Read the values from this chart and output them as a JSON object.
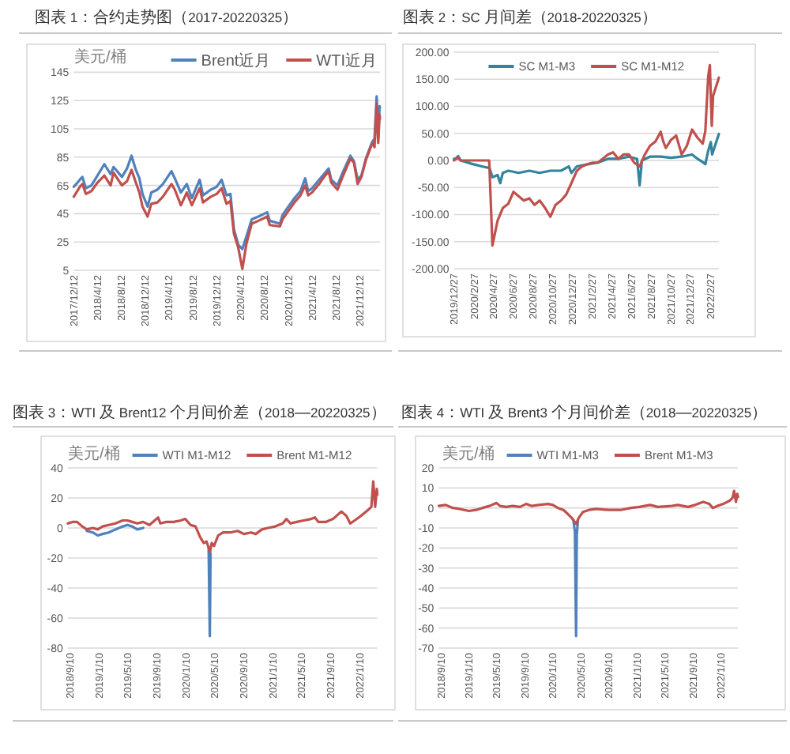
{
  "chart_data": [
    {
      "type": "line",
      "title": "图表 1：合约走势图（2017-20220325）",
      "ylabel": "美元/桶",
      "x": [
        "2017-12-12",
        "2018-01-12",
        "2018-01-25",
        "2018-02-12",
        "2018-03-12",
        "2018-04-12",
        "2018-05-17",
        "2018-06-18",
        "2018-07-03",
        "2018-08-15",
        "2018-09-10",
        "2018-10-03",
        "2018-10-25",
        "2018-11-12",
        "2018-11-28",
        "2018-12-24",
        "2019-01-12",
        "2019-02-12",
        "2019-03-12",
        "2019-04-25",
        "2019-05-12",
        "2019-06-12",
        "2019-07-12",
        "2019-08-07",
        "2019-09-16",
        "2019-10-03",
        "2019-11-12",
        "2019-12-12",
        "2020-01-06",
        "2020-01-31",
        "2020-02-20",
        "2020-03-09",
        "2020-03-31",
        "2020-04-21",
        "2020-05-12",
        "2020-06-08",
        "2020-07-12",
        "2020-08-26",
        "2020-09-08",
        "2020-10-30",
        "2020-11-12",
        "2020-12-12",
        "2021-01-12",
        "2021-02-12",
        "2021-03-08",
        "2021-03-23",
        "2021-04-12",
        "2021-05-18",
        "2021-06-12",
        "2021-07-06",
        "2021-07-19",
        "2021-08-20",
        "2021-09-12",
        "2021-10-25",
        "2021-11-12",
        "2021-12-01",
        "2021-12-20",
        "2022-01-12",
        "2022-02-14",
        "2022-02-25",
        "2022-03-08",
        "2022-03-16",
        "2022-03-23",
        "2022-03-25"
      ],
      "series": [
        {
          "name": "Brent近月",
          "color": "#4f81bd",
          "values": [
            64,
            69,
            71,
            63,
            65,
            72,
            80,
            73,
            78,
            71,
            77,
            86,
            76,
            70,
            59,
            50,
            60,
            62,
            66,
            75,
            70,
            60,
            66,
            56,
            69,
            58,
            62,
            64,
            69,
            58,
            59,
            34,
            23,
            20,
            29,
            41,
            43,
            46,
            40,
            38,
            44,
            50,
            56,
            61,
            70,
            61,
            63,
            69,
            73,
            77,
            69,
            65,
            73,
            86,
            82,
            69,
            72,
            84,
            96,
            98,
            128,
            98,
            121,
            120
          ]
        },
        {
          "name": "WTI近月",
          "color": "#c0504d",
          "values": [
            57,
            64,
            66,
            59,
            61,
            67,
            72,
            65,
            74,
            65,
            68,
            76,
            67,
            60,
            50,
            43,
            52,
            53,
            57,
            66,
            62,
            51,
            60,
            51,
            63,
            53,
            57,
            59,
            63,
            52,
            54,
            31,
            21,
            6,
            24,
            38,
            40,
            43,
            37,
            36,
            41,
            47,
            53,
            58,
            65,
            58,
            60,
            66,
            71,
            75,
            67,
            62,
            70,
            84,
            81,
            66,
            71,
            83,
            95,
            92,
            123,
            95,
            115,
            112
          ]
        }
      ],
      "xlim": [
        "2017-12-12",
        "2022-03-25"
      ],
      "xticks": [
        {
          "value": "2017-12-12",
          "label": "2017/12/12"
        },
        {
          "value": "2018-04-12",
          "label": "2018/4/12"
        },
        {
          "value": "2018-08-12",
          "label": "2018/8/12"
        },
        {
          "value": "2018-12-12",
          "label": "2018/12/12"
        },
        {
          "value": "2019-04-12",
          "label": "2019/4/12"
        },
        {
          "value": "2019-08-12",
          "label": "2019/8/12"
        },
        {
          "value": "2019-12-12",
          "label": "2019/12/12"
        },
        {
          "value": "2020-04-12",
          "label": "2020/4/12"
        },
        {
          "value": "2020-08-12",
          "label": "2020/8/12"
        },
        {
          "value": "2020-12-12",
          "label": "2020/12/12"
        },
        {
          "value": "2021-04-12",
          "label": "2021/4/12"
        },
        {
          "value": "2021-08-12",
          "label": "2021/8/12"
        },
        {
          "value": "2021-12-12",
          "label": "2021/12/12"
        }
      ],
      "ylim": [
        5,
        145
      ],
      "yticks": [
        5,
        25,
        45,
        65,
        85,
        105,
        125,
        145
      ],
      "grid": "y",
      "legend": "top right"
    },
    {
      "type": "line",
      "title": "图表 2：SC 月间差（2018-20220325）",
      "series": [
        {
          "name": "SC M1-M3",
          "color": "#31849b",
          "x": [
            "2019-12-27",
            "2020-01-01",
            "2020-01-09",
            "2020-01-17",
            "2020-02-19",
            "2020-03-22",
            "2020-04-15",
            "2020-04-24",
            "2020-05-10",
            "2020-05-18",
            "2020-05-26",
            "2020-06-12",
            "2020-07-14",
            "2020-08-16",
            "2020-09-17",
            "2020-10-20",
            "2020-11-22",
            "2020-12-16",
            "2020-12-24",
            "2021-01-10",
            "2021-02-12",
            "2021-03-16",
            "2021-04-16",
            "2021-05-18",
            "2021-06-20",
            "2021-07-15",
            "2021-07-23",
            "2021-07-30",
            "2021-08-24",
            "2021-09-26",
            "2021-10-28",
            "2021-11-30",
            "2022-01-01",
            "2022-01-18",
            "2022-02-03",
            "2022-02-11",
            "2022-02-20",
            "2022-02-28",
            "2022-03-04",
            "2022-03-25"
          ],
          "values": [
            3,
            3,
            8,
            0,
            -6,
            -11,
            -14,
            -31,
            -27,
            -42,
            -23,
            -19,
            -23,
            -19,
            -23,
            -19,
            -19,
            -11,
            -23,
            -11,
            -7,
            -4,
            3,
            3,
            7,
            3,
            -46,
            0,
            7,
            7,
            5,
            7,
            11,
            3,
            -3,
            -7,
            18,
            34,
            11,
            49
          ]
        },
        {
          "name": "SC M1-M12",
          "color": "#c0504d",
          "x": [
            "2019-12-27",
            "2020-01-08",
            "2020-01-17",
            "2020-04-14",
            "2020-04-24",
            "2020-05-10",
            "2020-05-26",
            "2020-06-12",
            "2020-06-28",
            "2020-07-14",
            "2020-07-30",
            "2020-08-16",
            "2020-09-01",
            "2020-09-17",
            "2020-10-04",
            "2020-10-20",
            "2020-11-05",
            "2020-11-22",
            "2020-12-08",
            "2020-12-24",
            "2021-01-10",
            "2021-01-26",
            "2021-02-12",
            "2021-02-28",
            "2021-03-16",
            "2021-04-16",
            "2021-05-02",
            "2021-05-18",
            "2021-06-03",
            "2021-06-20",
            "2021-07-06",
            "2021-07-23",
            "2021-08-08",
            "2021-08-24",
            "2021-09-10",
            "2021-09-26",
            "2021-10-04",
            "2021-10-12",
            "2021-10-28",
            "2021-11-13",
            "2021-11-30",
            "2021-12-16",
            "2022-01-01",
            "2022-01-18",
            "2022-02-03",
            "2022-02-11",
            "2022-02-20",
            "2022-02-25",
            "2022-03-03",
            "2022-03-07",
            "2022-03-25"
          ],
          "values": [
            0,
            5,
            0,
            0,
            -157,
            -111,
            -88,
            -80,
            -58,
            -66,
            -74,
            -70,
            -82,
            -74,
            -88,
            -104,
            -82,
            -74,
            -63,
            -42,
            -19,
            -11,
            -7,
            -4,
            -4,
            11,
            15,
            3,
            11,
            11,
            -4,
            -11,
            11,
            27,
            35,
            53,
            35,
            23,
            38,
            46,
            11,
            27,
            57,
            42,
            31,
            54,
            156,
            176,
            64,
            119,
            153
          ]
        }
      ],
      "xlim": [
        "2019-12-27",
        "2022-03-25"
      ],
      "xticks": [
        {
          "value": "2019-12-27",
          "label": "2019/12/27"
        },
        {
          "value": "2020-02-27",
          "label": "2020/2/27"
        },
        {
          "value": "2020-04-27",
          "label": "2020/4/27"
        },
        {
          "value": "2020-06-27",
          "label": "2020/6/27"
        },
        {
          "value": "2020-08-27",
          "label": "2020/8/27"
        },
        {
          "value": "2020-10-27",
          "label": "2020/10/27"
        },
        {
          "value": "2020-12-27",
          "label": "2020/12/27"
        },
        {
          "value": "2021-02-27",
          "label": "2021/2/27"
        },
        {
          "value": "2021-04-27",
          "label": "2021/4/27"
        },
        {
          "value": "2021-06-27",
          "label": "2021/6/27"
        },
        {
          "value": "2021-08-27",
          "label": "2021/8/27"
        },
        {
          "value": "2021-10-27",
          "label": "2021/10/27"
        },
        {
          "value": "2021-12-27",
          "label": "2021/12/27"
        },
        {
          "value": "2022-02-27",
          "label": "2022/2/27"
        }
      ],
      "ylim": [
        -200,
        200
      ],
      "yticks": [
        {
          "value": -200,
          "label": "-200.00"
        },
        {
          "value": -150,
          "label": "-150.00"
        },
        {
          "value": -100,
          "label": "-100.00"
        },
        {
          "value": -50,
          "label": "-50.00"
        },
        {
          "value": 0,
          "label": "0.00"
        },
        {
          "value": 50,
          "label": "50.00"
        },
        {
          "value": 100,
          "label": "100.00"
        },
        {
          "value": 150,
          "label": "150.00"
        },
        {
          "value": 200,
          "label": "200.00"
        }
      ],
      "grid": "y",
      "legend": "top"
    },
    {
      "type": "line",
      "title": "图表 3：WTI 及 Brent12 个月间价差（2018—20220325）",
      "ylabel": "美元/桶",
      "series": [
        {
          "name": "WTI M1-M12",
          "color": "#4f81bd",
          "x": [
            "2018-11-20",
            "2018-12-15",
            "2019-01-05",
            "2019-01-25",
            "2019-02-20",
            "2019-03-20",
            "2019-04-20",
            "2019-05-10",
            "2019-05-30",
            "2019-06-20",
            "2019-07-15"
          ],
          "values": [
            -2,
            -3,
            -5,
            -4,
            -3,
            -1,
            1,
            2,
            1,
            -1,
            0
          ]
        },
        {
          "color": "#4f81bd",
          "x": [
            "2020-04-15",
            "2020-04-20",
            "2020-04-23"
          ],
          "values": [
            -13,
            -72,
            -17
          ]
        },
        {
          "name": "Brent M1-M12",
          "color": "#c0504d",
          "x": [
            "2018-09-01",
            "2018-09-20",
            "2018-10-10",
            "2018-11-01",
            "2018-11-20",
            "2018-12-15",
            "2019-01-05",
            "2019-01-25",
            "2019-02-20",
            "2019-03-20",
            "2019-04-20",
            "2019-05-10",
            "2019-05-30",
            "2019-06-20",
            "2019-07-15",
            "2019-08-10",
            "2019-09-16",
            "2019-09-25",
            "2019-10-20",
            "2019-11-20",
            "2019-12-20",
            "2020-01-08",
            "2020-01-30",
            "2020-02-20",
            "2020-03-10",
            "2020-03-25",
            "2020-04-06",
            "2020-04-15",
            "2020-04-21",
            "2020-04-28",
            "2020-05-08",
            "2020-05-25",
            "2020-06-15",
            "2020-07-15",
            "2020-08-15",
            "2020-09-10",
            "2020-10-10",
            "2020-10-30",
            "2020-11-25",
            "2020-12-20",
            "2021-01-20",
            "2021-02-20",
            "2021-03-08",
            "2021-03-25",
            "2021-04-20",
            "2021-05-20",
            "2021-06-20",
            "2021-07-06",
            "2021-07-20",
            "2021-08-20",
            "2021-09-20",
            "2021-10-25",
            "2021-11-15",
            "2021-12-01",
            "2021-12-20",
            "2022-01-15",
            "2022-02-14",
            "2022-02-28",
            "2022-03-08",
            "2022-03-16",
            "2022-03-23",
            "2022-03-25"
          ],
          "values": [
            3,
            4,
            4,
            1,
            -1,
            0,
            -1,
            1,
            2,
            3,
            5,
            5,
            4,
            3,
            4,
            2,
            7,
            3,
            4,
            4,
            5,
            6,
            2,
            1,
            -6,
            -10,
            -9,
            -13,
            -16,
            -10,
            -12,
            -5,
            -3,
            -3,
            -2,
            -4,
            -3,
            -4,
            -1,
            0,
            1,
            3,
            6,
            3,
            4,
            5,
            6,
            7,
            4,
            4,
            6,
            11,
            8,
            3,
            5,
            8,
            12,
            14,
            31,
            14,
            26,
            22
          ]
        }
      ],
      "xlim": [
        "2018-09-01",
        "2022-03-25"
      ],
      "xticks": [
        {
          "value": "2018-09-10",
          "label": "2018/9/10"
        },
        {
          "value": "2019-01-10",
          "label": "2019/1/10"
        },
        {
          "value": "2019-05-10",
          "label": "2019/5/10"
        },
        {
          "value": "2019-09-10",
          "label": "2019/9/10"
        },
        {
          "value": "2020-01-10",
          "label": "2020/1/10"
        },
        {
          "value": "2020-05-10",
          "label": "2020/5/10"
        },
        {
          "value": "2020-09-10",
          "label": "2020/9/10"
        },
        {
          "value": "2021-01-10",
          "label": "2021/1/10"
        },
        {
          "value": "2021-05-10",
          "label": "2021/5/10"
        },
        {
          "value": "2021-09-10",
          "label": "2021/9/10"
        },
        {
          "value": "2022-01-10",
          "label": "2022/1/10"
        }
      ],
      "ylim": [
        -80,
        40
      ],
      "yticks": [
        -80,
        -60,
        -40,
        -20,
        0,
        20,
        40
      ],
      "grid": "y",
      "legend": "top"
    },
    {
      "type": "line",
      "title": "图表 4：WTI 及 Brent3 个月间价差（2018—20220325）",
      "ylabel": "美元/桶",
      "series": [
        {
          "name": "WTI M1-M3",
          "color": "#4f81bd",
          "x": [
            "2020-04-08",
            "2020-04-15",
            "2020-04-20",
            "2020-04-23",
            "2020-04-28"
          ],
          "values": [
            -6,
            -12,
            -64,
            -14,
            -6
          ]
        },
        {
          "name": "Brent M1-M3",
          "color": "#c0504d",
          "x": [
            "2018-09-01",
            "2018-10-01",
            "2018-11-01",
            "2018-12-01",
            "2019-01-10",
            "2019-02-10",
            "2019-03-10",
            "2019-04-10",
            "2019-05-10",
            "2019-05-25",
            "2019-06-20",
            "2019-07-20",
            "2019-08-20",
            "2019-09-16",
            "2019-10-10",
            "2019-11-10",
            "2019-12-20",
            "2020-01-10",
            "2020-02-01",
            "2020-02-25",
            "2020-03-15",
            "2020-04-01",
            "2020-04-21",
            "2020-05-01",
            "2020-05-20",
            "2020-06-15",
            "2020-07-15",
            "2020-09-10",
            "2020-10-30",
            "2020-12-15",
            "2021-01-20",
            "2021-03-08",
            "2021-04-10",
            "2021-06-10",
            "2021-07-06",
            "2021-08-20",
            "2021-09-20",
            "2021-10-25",
            "2021-11-20",
            "2021-12-05",
            "2021-12-25",
            "2022-01-20",
            "2022-02-15",
            "2022-03-01",
            "2022-03-08",
            "2022-03-16",
            "2022-03-22",
            "2022-03-25"
          ],
          "values": [
            1,
            1.5,
            0,
            -0.5,
            -1.5,
            -1,
            0,
            1,
            2.5,
            1,
            0.5,
            1,
            0.5,
            2,
            1,
            1.5,
            2,
            1.5,
            0,
            -1,
            -3,
            -5,
            -8,
            -5,
            -2,
            -1,
            -0.5,
            -1,
            -1,
            0,
            0.5,
            1.5,
            0.5,
            1,
            1.5,
            0.5,
            1.5,
            3,
            2,
            0,
            1,
            2,
            3.5,
            5,
            8.5,
            3,
            7,
            5.5
          ]
        }
      ],
      "xlim": [
        "2018-09-01",
        "2022-03-25"
      ],
      "xticks": [
        {
          "value": "2018-09-10",
          "label": "2018/9/10"
        },
        {
          "value": "2019-01-10",
          "label": "2019/1/10"
        },
        {
          "value": "2019-05-10",
          "label": "2019/5/10"
        },
        {
          "value": "2019-09-10",
          "label": "2019/9/10"
        },
        {
          "value": "2020-01-10",
          "label": "2020/1/10"
        },
        {
          "value": "2020-05-10",
          "label": "2020/5/10"
        },
        {
          "value": "2020-09-10",
          "label": "2020/9/10"
        },
        {
          "value": "2021-01-10",
          "label": "2021/1/10"
        },
        {
          "value": "2021-05-10",
          "label": "2021/5/10"
        },
        {
          "value": "2021-09-10",
          "label": "2021/9/10"
        },
        {
          "value": "2022-01-10",
          "label": "2022/1/10"
        }
      ],
      "ylim": [
        -70,
        20
      ],
      "yticks": [
        -70,
        -60,
        -50,
        -40,
        -30,
        -20,
        -10,
        0,
        10,
        20
      ],
      "grid": "y",
      "legend": "top"
    }
  ]
}
